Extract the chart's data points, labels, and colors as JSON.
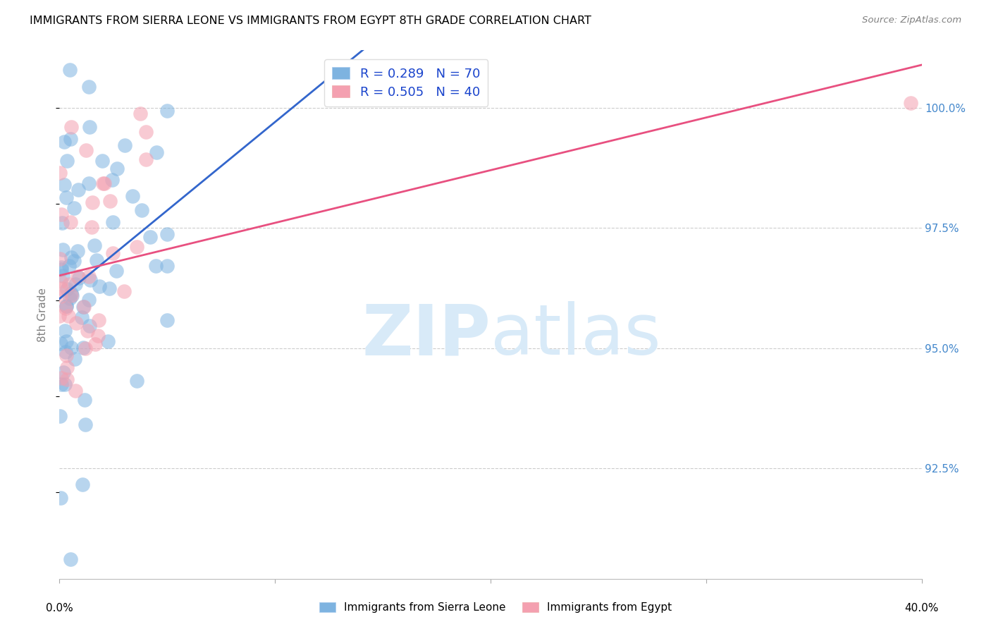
{
  "title": "IMMIGRANTS FROM SIERRA LEONE VS IMMIGRANTS FROM EGYPT 8TH GRADE CORRELATION CHART",
  "source": "Source: ZipAtlas.com",
  "ylabel": "8th Grade",
  "y_ticks": [
    92.5,
    95.0,
    97.5,
    100.0
  ],
  "y_tick_labels": [
    "92.5%",
    "95.0%",
    "97.5%",
    "100.0%"
  ],
  "x_min": 0.0,
  "x_max": 40.0,
  "y_min": 90.2,
  "y_max": 101.2,
  "color_sierra": "#7eb3e0",
  "color_egypt": "#f4a0b0",
  "color_sierra_line": "#3366cc",
  "color_egypt_line": "#e85080",
  "watermark_color": "#d8eaf8",
  "legend_label1": "R = 0.289   N = 70",
  "legend_label2": "R = 0.505   N = 40"
}
